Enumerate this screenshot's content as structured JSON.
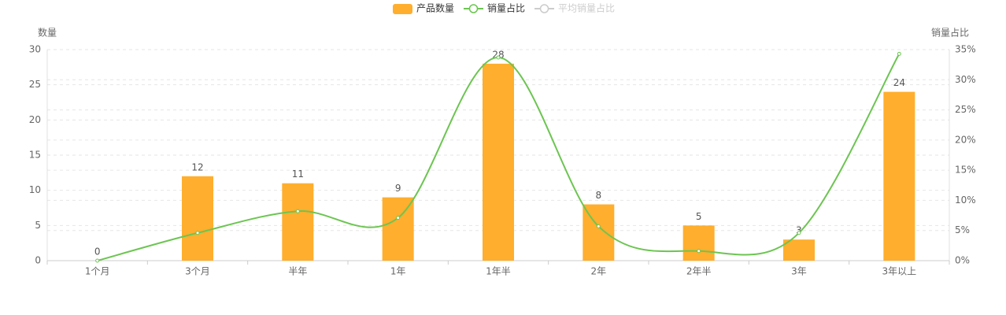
{
  "chart_data": {
    "type": "bar_line",
    "categories": [
      "1个月",
      "3个月",
      "半年",
      "1年",
      "1年半",
      "2年",
      "2年半",
      "3年",
      "3年以上"
    ],
    "series": [
      {
        "name": "产品数量",
        "color": "#ffae2d",
        "values": [
          0,
          12,
          11,
          9,
          28,
          8,
          5,
          3,
          24
        ]
      },
      {
        "name": "销量占比",
        "color": "#6cc551",
        "axis": "y2",
        "values": [
          0,
          4.6,
          8.2,
          7.1,
          33.7,
          5.7,
          1.6,
          4.6,
          34.3
        ]
      },
      {
        "name": "平均销量占比",
        "color": "#cccccc",
        "hidden": true
      }
    ],
    "ylabel": "数量",
    "y2label": "销量占比",
    "ylim": [
      0,
      30
    ],
    "yticks": [
      0,
      5,
      10,
      15,
      20,
      25,
      30
    ],
    "y2lim": [
      0,
      35
    ],
    "y2ticks": [
      {
        "value": 0,
        "label": "0%"
      },
      {
        "value": 5,
        "label": "5%"
      },
      {
        "value": 10,
        "label": "10%"
      },
      {
        "value": 15,
        "label": "15%"
      },
      {
        "value": 20,
        "label": "20%"
      },
      {
        "value": 25,
        "label": "25%"
      },
      {
        "value": 30,
        "label": "30%"
      },
      {
        "value": 35,
        "label": "35%"
      }
    ],
    "grid": true
  }
}
